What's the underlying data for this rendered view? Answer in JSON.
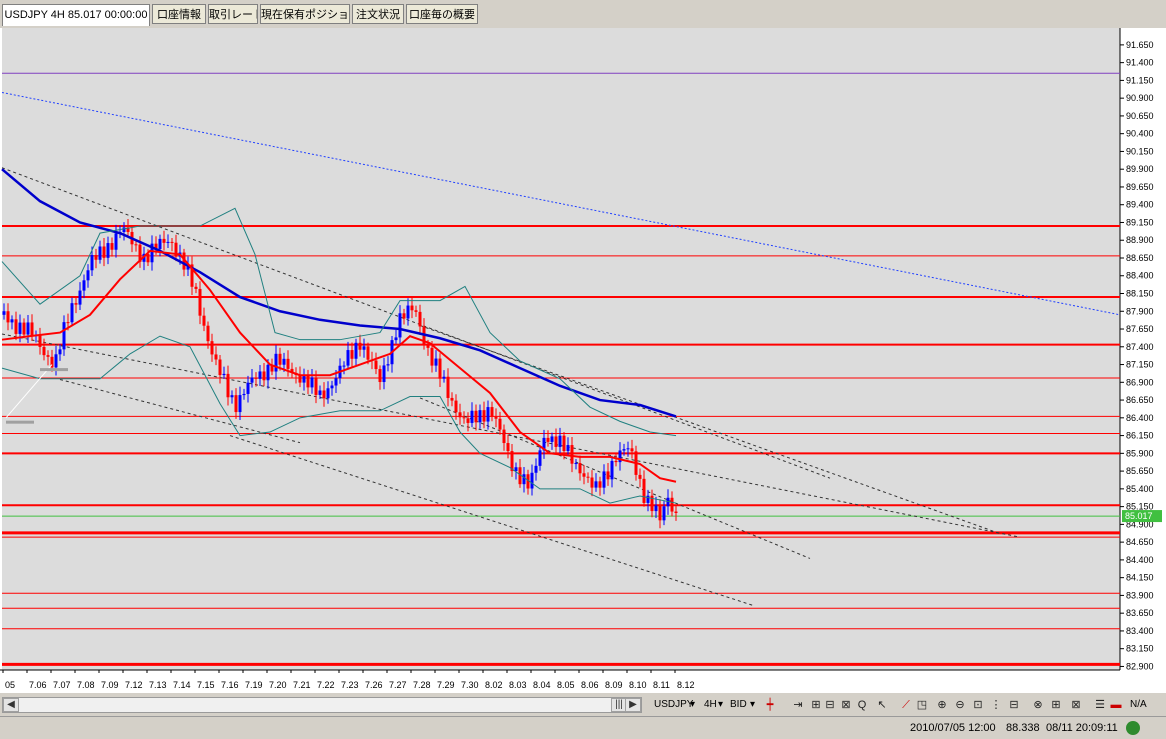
{
  "tabs": [
    {
      "label": "USDJPY 4H 85.017 00:00:00",
      "active": true
    },
    {
      "label": "口座情報"
    },
    {
      "label": "取引レート"
    },
    {
      "label": "現在保有ポジション"
    },
    {
      "label": "注文状況"
    },
    {
      "label": "口座毎の概要"
    }
  ],
  "chart": {
    "current_price_label": "85.017",
    "price_axis": [
      "91.650",
      "91.400",
      "91.150",
      "90.900",
      "90.650",
      "90.400",
      "90.150",
      "89.900",
      "89.650",
      "89.400",
      "89.150",
      "88.900",
      "88.650",
      "88.400",
      "88.150",
      "87.900",
      "87.650",
      "87.400",
      "87.150",
      "86.900",
      "86.650",
      "86.400",
      "86.150",
      "85.900",
      "85.650",
      "85.400",
      "85.150",
      "84.900",
      "84.650",
      "84.400",
      "84.150",
      "83.900",
      "83.650",
      "83.400",
      "83.150",
      "82.900"
    ],
    "date_axis": [
      "05",
      "7.06",
      "7.07",
      "7.08",
      "7.09",
      "7.12",
      "7.13",
      "7.14",
      "7.15",
      "7.16",
      "7.19",
      "7.20",
      "7.21",
      "7.22",
      "7.23",
      "7.26",
      "7.27",
      "7.28",
      "7.29",
      "7.30",
      "8.02",
      "8.03",
      "8.04",
      "8.05",
      "8.06",
      "8.09",
      "8.10",
      "8.11",
      "8.12"
    ],
    "colors": {
      "up": "#0000ff",
      "down": "#ff0000",
      "ma_fast": "#ff0000",
      "ma_slow": "#0000cc",
      "bollinger": "#208080",
      "hline": "#ff0000",
      "bg": "#dcdcdc"
    }
  },
  "toolbar": {
    "symbol": "USDJPY",
    "timeframe": "4H",
    "side": "BID",
    "icons": [
      "scroll-left-icon",
      "scroll-right-icon",
      "zoom-in-icon",
      "zoom-out-icon",
      "settings-icon"
    ],
    "na_label": "N/A"
  },
  "status": {
    "datetime": "2010/07/05 12:00",
    "price": "88.338",
    "clock": "08/11 20:09:11"
  }
}
